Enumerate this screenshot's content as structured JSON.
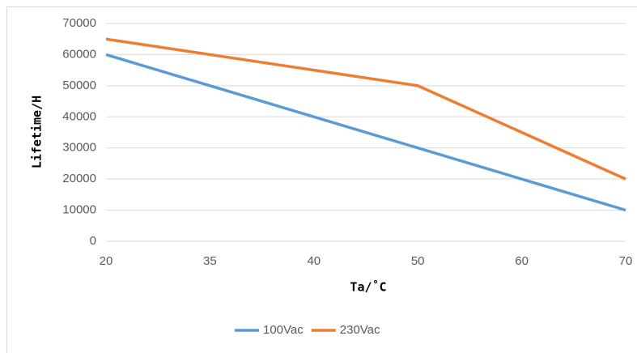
{
  "chart_data": {
    "type": "line",
    "x_label": "Ta/˚C",
    "y_label": "Lifetime/H",
    "categories": [
      "20",
      "35",
      "40",
      "50",
      "60",
      "70"
    ],
    "series": [
      {
        "name": "100Vac",
        "color": "#5b9bd5",
        "values": [
          60000,
          50000,
          40000,
          30000,
          20000,
          10000
        ]
      },
      {
        "name": "230Vac",
        "color": "#ed7d31",
        "values": [
          65000,
          60000,
          55000,
          50000,
          35000,
          20000
        ]
      }
    ],
    "ylim": [
      0,
      70000
    ],
    "yticks": [
      0,
      10000,
      20000,
      30000,
      40000,
      50000,
      60000,
      70000
    ],
    "grid": true,
    "legend": "bottom"
  }
}
